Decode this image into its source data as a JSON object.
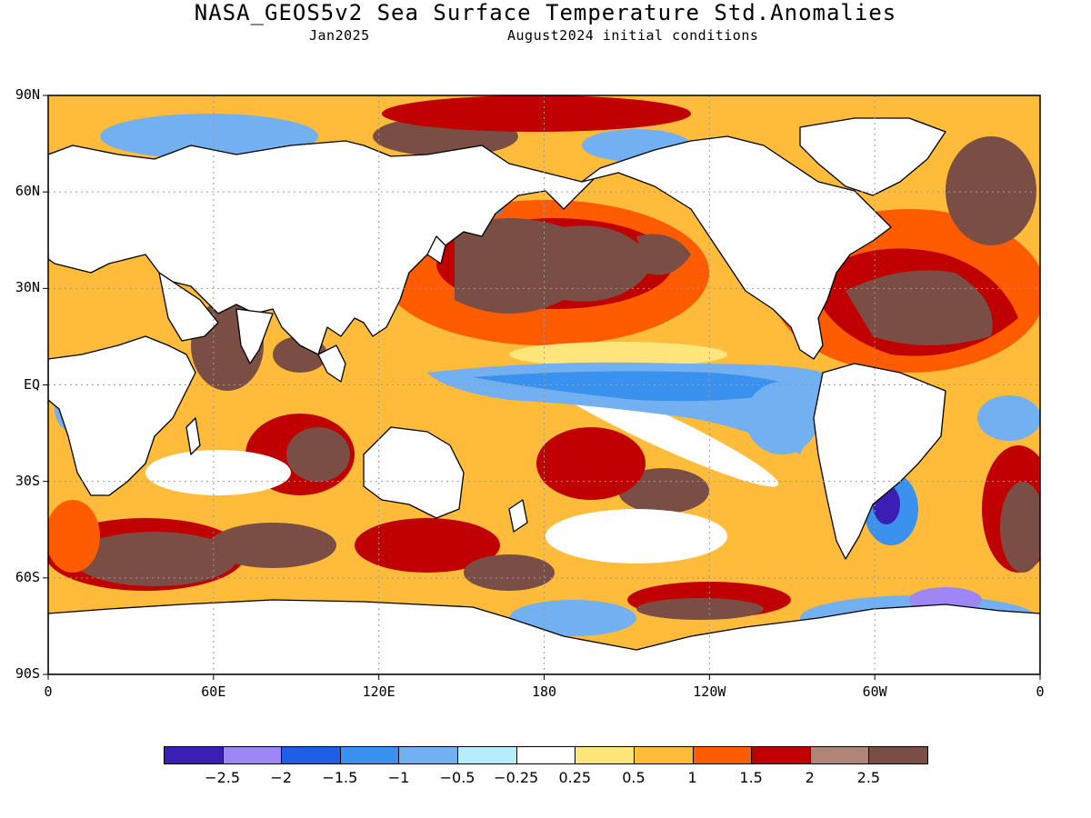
{
  "header": {
    "title": "NASA_GEOS5v2 Sea Surface Temperature Std.Anomalies",
    "valid_month": "Jan2025",
    "init_conditions": "August2024 initial conditions"
  },
  "axes": {
    "lat_labels": [
      "90N",
      "60N",
      "30N",
      "EQ",
      "30S",
      "60S",
      "90S"
    ],
    "lon_labels": [
      "0",
      "60E",
      "120E",
      "180",
      "120W",
      "60W",
      "0"
    ]
  },
  "colorbar": {
    "colors": [
      "#3b1fb5",
      "#9e86f5",
      "#1f5fe6",
      "#3a92ee",
      "#72b0f2",
      "#b5eefa",
      "#ffffff",
      "#ffe57a",
      "#ffbb3a",
      "#ff5b00",
      "#c00000",
      "#b08478",
      "#7a4e44"
    ],
    "tick_labels": [
      "-2.5",
      "-2",
      "-1.5",
      "-1",
      "-0.5",
      "-0.25",
      "0.25",
      "0.5",
      "1",
      "1.5",
      "2",
      "2.5"
    ]
  },
  "colors": {
    "land": "#ffffff",
    "coastline": "#000000",
    "grid": "#9a9a9a"
  }
}
